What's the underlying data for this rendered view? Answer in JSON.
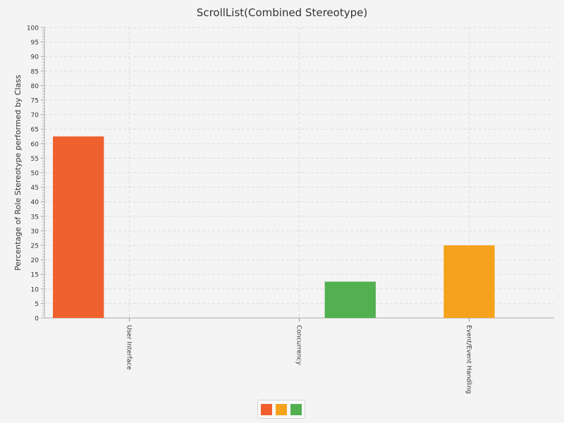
{
  "chart_data": {
    "type": "bar",
    "title": "ScrollList(Combined Stereotype)",
    "xlabel": "",
    "ylabel": "Percentage of Role Stereotype performed by Class",
    "ylim": [
      0,
      100
    ],
    "ytick_step": 5,
    "grid": true,
    "legend_position": "bottom",
    "categories": [
      "User Interface",
      "Concurrency",
      "Event/Event Handling"
    ],
    "series": [
      {
        "color": "#f0602e",
        "values": [
          62.5,
          0,
          0
        ]
      },
      {
        "color": "#f5a21c",
        "values": [
          0,
          0,
          25
        ]
      },
      {
        "color": "#52b050",
        "values": [
          0,
          12.5,
          0
        ]
      }
    ],
    "bar_colors_by_category": [
      "#f0602e",
      "#52b050",
      "#f5a21c"
    ]
  }
}
